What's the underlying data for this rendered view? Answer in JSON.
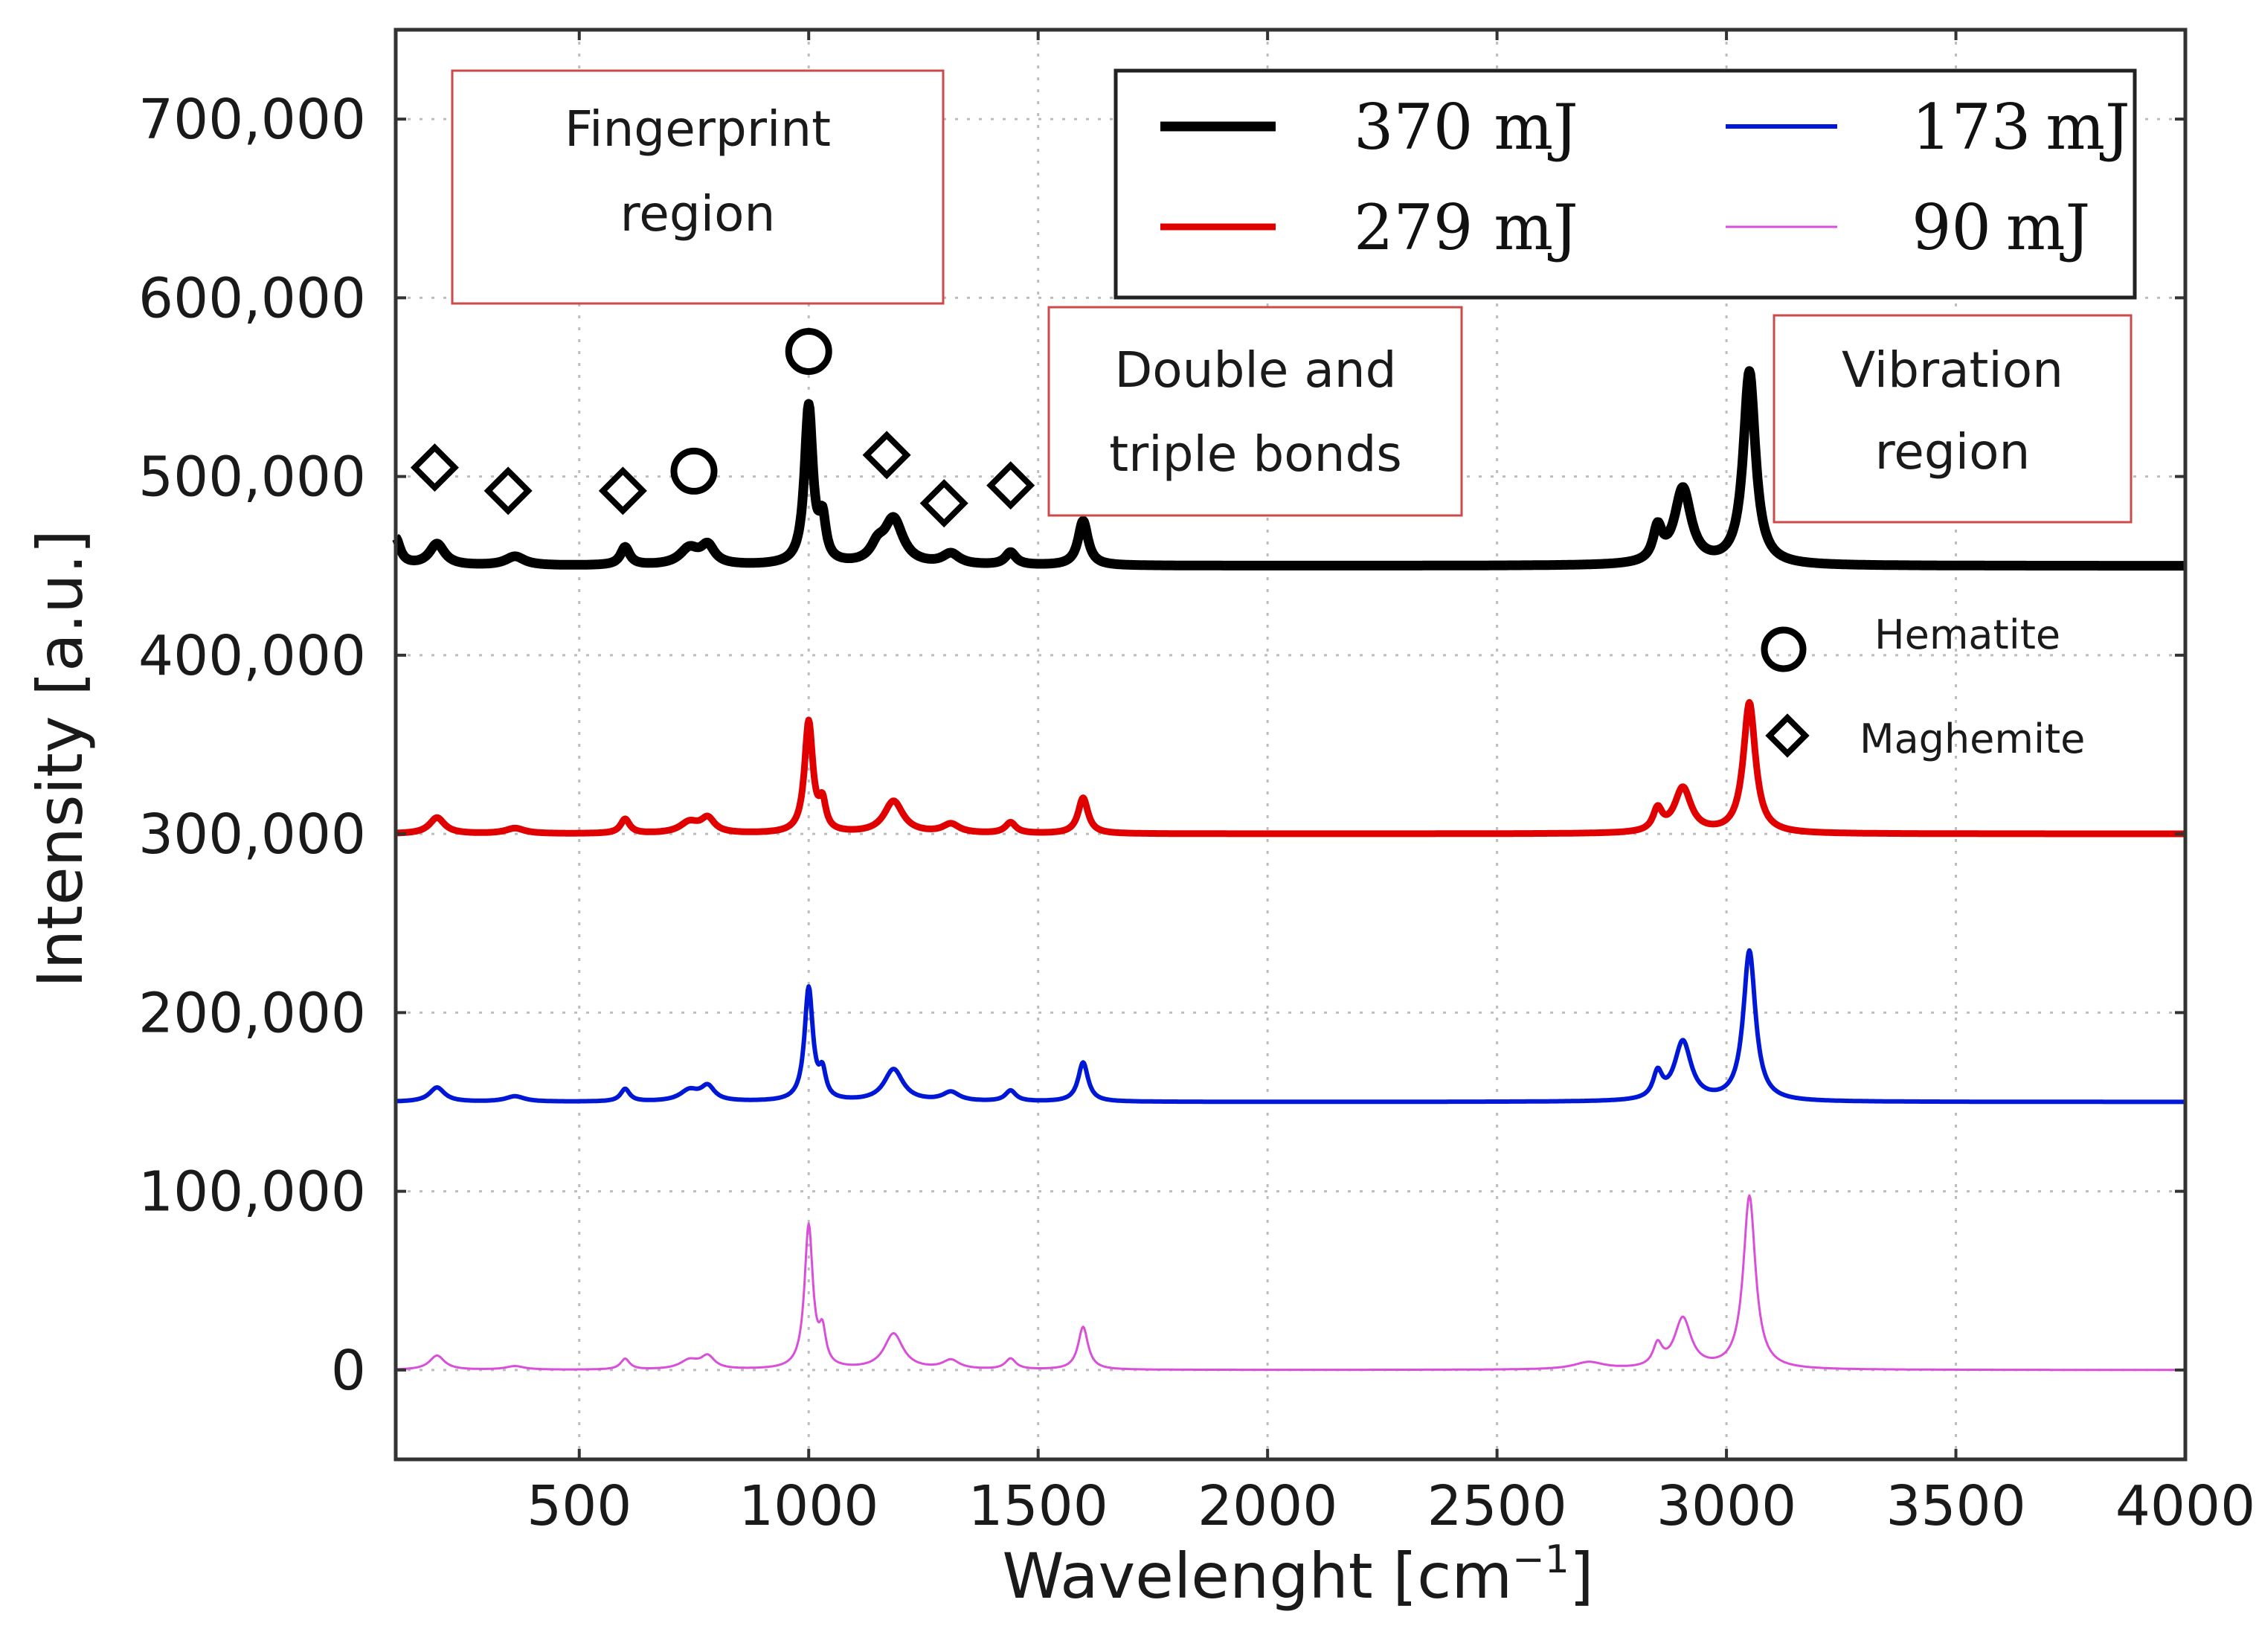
{
  "chart_data": {
    "type": "line",
    "xlabel": "Wavelenght [cm",
    "xlabel_sup": "−1",
    "xlabel_end": "]",
    "ylabel": "Intensity [a.u.]",
    "xlim": [
      100,
      4000
    ],
    "ylim": [
      -50000,
      750000
    ],
    "xticks": [
      500,
      1000,
      1500,
      2000,
      2500,
      3000,
      3500,
      4000
    ],
    "xtick_labels": [
      "500",
      "1000",
      "1500",
      "2000",
      "2500",
      "3000",
      "3500",
      "4000"
    ],
    "yticks": [
      0,
      100000,
      200000,
      300000,
      400000,
      500000,
      600000,
      700000
    ],
    "ytick_labels": [
      "0",
      "100,000",
      "200,000",
      "300,000",
      "400,000",
      "500,000",
      "600,000",
      "700,000"
    ],
    "grid": true,
    "series": [
      {
        "name": "370 mJ",
        "value_label": "370",
        "unit_label": "mJ",
        "color": "#000000",
        "baseline": 450000,
        "scale": 1.0,
        "peaks": [
          [
            100,
            15000,
            12
          ],
          [
            190,
            12000,
            20
          ],
          [
            360,
            5000,
            25
          ],
          [
            600,
            10000,
            12
          ],
          [
            740,
            9000,
            25
          ],
          [
            780,
            10000,
            18
          ],
          [
            1000,
            88000,
            11
          ],
          [
            1030,
            22000,
            9
          ],
          [
            1150,
            8000,
            18
          ],
          [
            1185,
            25000,
            25
          ],
          [
            1310,
            6000,
            22
          ],
          [
            1440,
            7000,
            14
          ],
          [
            1598,
            25000,
            13
          ],
          [
            2850,
            18000,
            12
          ],
          [
            2905,
            42000,
            22
          ],
          [
            3050,
            108000,
            16
          ]
        ]
      },
      {
        "name": "279 mJ",
        "value_label": "279",
        "unit_label": "mJ",
        "color": "#e00000",
        "baseline": 300000,
        "scale": 1.0,
        "peaks": [
          [
            190,
            9000,
            20
          ],
          [
            360,
            3000,
            25
          ],
          [
            600,
            8000,
            12
          ],
          [
            740,
            6000,
            25
          ],
          [
            780,
            8000,
            18
          ],
          [
            1000,
            62000,
            11
          ],
          [
            1030,
            15000,
            9
          ],
          [
            1185,
            18000,
            25
          ],
          [
            1310,
            5000,
            22
          ],
          [
            1440,
            6000,
            14
          ],
          [
            1598,
            20000,
            13
          ],
          [
            2850,
            12000,
            12
          ],
          [
            2905,
            25000,
            22
          ],
          [
            3050,
            73000,
            16
          ]
        ]
      },
      {
        "name": "173 mJ",
        "value_label": "173",
        "unit_label": "mJ",
        "color": "#0018d6",
        "baseline": 150000,
        "scale": 1.0,
        "peaks": [
          [
            190,
            8000,
            20
          ],
          [
            360,
            3000,
            25
          ],
          [
            600,
            7000,
            12
          ],
          [
            740,
            6000,
            25
          ],
          [
            780,
            8000,
            18
          ],
          [
            1000,
            63000,
            11
          ],
          [
            1030,
            14000,
            9
          ],
          [
            1185,
            18000,
            25
          ],
          [
            1310,
            5000,
            22
          ],
          [
            1440,
            6000,
            14
          ],
          [
            1598,
            22000,
            13
          ],
          [
            2850,
            14000,
            12
          ],
          [
            2905,
            33000,
            22
          ],
          [
            3050,
            84000,
            16
          ]
        ]
      },
      {
        "name": "90 mJ",
        "value_label": "90",
        "unit_label": "mJ",
        "color": "#d94fd9",
        "baseline": 0,
        "scale": 1.0,
        "peaks": [
          [
            190,
            8000,
            20
          ],
          [
            360,
            2000,
            25
          ],
          [
            600,
            6000,
            12
          ],
          [
            740,
            5000,
            25
          ],
          [
            780,
            7000,
            18
          ],
          [
            1000,
            80000,
            11
          ],
          [
            1030,
            18000,
            9
          ],
          [
            1185,
            20000,
            25
          ],
          [
            1310,
            5000,
            22
          ],
          [
            1440,
            6000,
            14
          ],
          [
            1598,
            24000,
            13
          ],
          [
            2700,
            4000,
            40
          ],
          [
            2850,
            12000,
            12
          ],
          [
            2905,
            28000,
            22
          ],
          [
            3050,
            97000,
            16
          ]
        ]
      }
    ],
    "region_boxes": [
      {
        "lines": [
          "Fingerprint",
          "region"
        ]
      },
      {
        "lines": [
          "Double and",
          "triple bonds"
        ]
      },
      {
        "lines": [
          "Vibration",
          "region"
        ]
      }
    ],
    "annotations": {
      "markers": [
        {
          "shape": "diamond",
          "x": 185,
          "y": 505000
        },
        {
          "shape": "diamond",
          "x": 345,
          "y": 492000
        },
        {
          "shape": "diamond",
          "x": 595,
          "y": 492000
        },
        {
          "shape": "circle",
          "x": 750,
          "y": 503000
        },
        {
          "shape": "circle",
          "x": 1000,
          "y": 570000
        },
        {
          "shape": "diamond",
          "x": 1170,
          "y": 512000
        },
        {
          "shape": "diamond",
          "x": 1295,
          "y": 485000
        },
        {
          "shape": "diamond",
          "x": 1440,
          "y": 495000
        }
      ],
      "marker_legend": [
        {
          "shape": "circle",
          "label": "Hematite"
        },
        {
          "shape": "diamond",
          "label": "Maghemite"
        }
      ]
    }
  }
}
